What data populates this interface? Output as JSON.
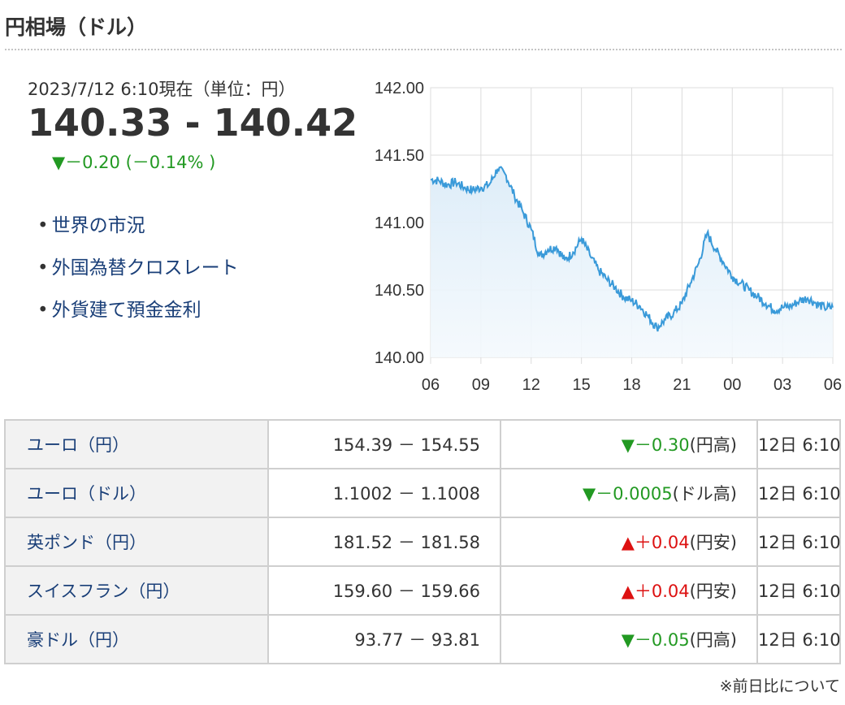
{
  "title": "円相場（ドル）",
  "summary": {
    "as_of": "2023/7/12 6:10現在（単位：円）",
    "rate": "140.33 - 140.42",
    "change": "▼－0.20 (－0.14% )"
  },
  "links": [
    "世界の市況",
    "外国為替クロスレート",
    "外貨建て預金金利"
  ],
  "colors": {
    "line": "#3a9ad9",
    "up": "#dd1111",
    "down": "#229922",
    "link": "#1a3f78"
  },
  "chart_data": {
    "type": "area",
    "x_tick_labels": [
      "06",
      "09",
      "12",
      "15",
      "18",
      "21",
      "00",
      "03",
      "06"
    ],
    "y_tick_labels": [
      "142.00",
      "141.50",
      "141.00",
      "140.50",
      "140.00"
    ],
    "ylim": [
      140.0,
      142.0
    ],
    "x": [
      0,
      0.5,
      1.0,
      1.5,
      2.0,
      2.5,
      3.0,
      3.5,
      4.0,
      4.5,
      5.0,
      5.5,
      6.0,
      6.5,
      7.0,
      7.5,
      8.0,
      8.5,
      9.0,
      9.5,
      10.0,
      10.5,
      11.0,
      11.5,
      12.0,
      12.5,
      13.0,
      13.5,
      14.0,
      14.5,
      15.0,
      15.5,
      16.0,
      16.5,
      17.0,
      17.5,
      18.0,
      18.5,
      19.0,
      19.5,
      20.0,
      20.5,
      21.0,
      21.5,
      22.0,
      22.5,
      23.0,
      23.5,
      24.0
    ],
    "values": [
      141.32,
      141.31,
      141.28,
      141.3,
      141.26,
      141.24,
      141.26,
      141.28,
      141.4,
      141.35,
      141.2,
      141.08,
      140.95,
      140.75,
      140.8,
      140.82,
      140.72,
      140.78,
      140.88,
      140.76,
      140.65,
      140.58,
      140.52,
      140.45,
      140.42,
      140.38,
      140.3,
      140.22,
      140.28,
      140.33,
      140.4,
      140.55,
      140.7,
      140.92,
      140.8,
      140.7,
      140.6,
      140.55,
      140.5,
      140.45,
      140.4,
      140.35,
      140.37,
      140.38,
      140.42,
      140.44,
      140.4,
      140.37,
      140.37
    ]
  },
  "table": {
    "rows": [
      {
        "name": "ユーロ（円）",
        "value": "154.39 － 154.55",
        "direction": "down",
        "mark": "▼",
        "change": "－0.30",
        "note": "(円高)",
        "time": "12日 6:10"
      },
      {
        "name": "ユーロ（ドル）",
        "value": "1.1002 － 1.1008",
        "direction": "down",
        "mark": "▼",
        "change": "－0.0005",
        "note": "(ドル高)",
        "time": "12日 6:10"
      },
      {
        "name": "英ポンド（円）",
        "value": "181.52 － 181.58",
        "direction": "up",
        "mark": "▲",
        "change": "＋0.04",
        "note": "(円安)",
        "time": "12日 6:10"
      },
      {
        "name": "スイスフラン（円）",
        "value": "159.60 － 159.66",
        "direction": "up",
        "mark": "▲",
        "change": "＋0.04",
        "note": "(円安)",
        "time": "12日 6:10"
      },
      {
        "name": "豪ドル（円）",
        "value": "93.77 － 93.81",
        "direction": "down",
        "mark": "▼",
        "change": "－0.05",
        "note": "(円高)",
        "time": "12日 6:10"
      }
    ]
  },
  "footnote": "※前日比について"
}
